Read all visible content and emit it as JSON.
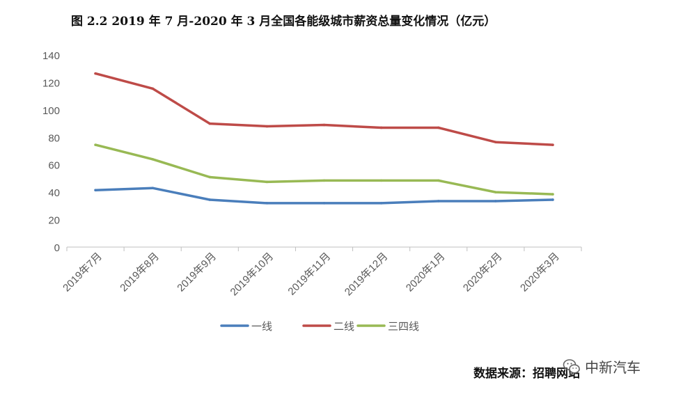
{
  "title": "图 2.2   2019 年 7 月-2020 年 3 月全国各能级城市薪资总量变化情况（亿元）",
  "source": "数据来源：招聘网站",
  "watermark": {
    "text": "中新汽车",
    "icon": "wechat-icon"
  },
  "chart_data": {
    "type": "line",
    "title": "图 2.2   2019 年 7 月-2020 年 3 月全国各能级城市薪资总量变化情况（亿元）",
    "xlabel": "",
    "ylabel": "",
    "categories": [
      "2019年7月",
      "2019年8月",
      "2019年9月",
      "2019年10月",
      "2019年11月",
      "2019年12月",
      "2020年1月",
      "2020年2月",
      "2020年3月"
    ],
    "ylim": [
      0,
      140
    ],
    "yticks": [
      0,
      20,
      40,
      60,
      80,
      100,
      120,
      140
    ],
    "grid": false,
    "legend": "bottom",
    "series": [
      {
        "name": "一线",
        "color": "#4a7ebb",
        "values": [
          41.5,
          43,
          34.5,
          32,
          32,
          32,
          33.5,
          33.5,
          34.5
        ]
      },
      {
        "name": "二线",
        "color": "#be4b48",
        "values": [
          126.5,
          115.5,
          90,
          88,
          89,
          87,
          87,
          76.5,
          74.5
        ]
      },
      {
        "name": "三四线",
        "color": "#98b954",
        "values": [
          74.5,
          64,
          51,
          47.5,
          48.5,
          48.5,
          48.5,
          40,
          38.5
        ]
      }
    ]
  }
}
